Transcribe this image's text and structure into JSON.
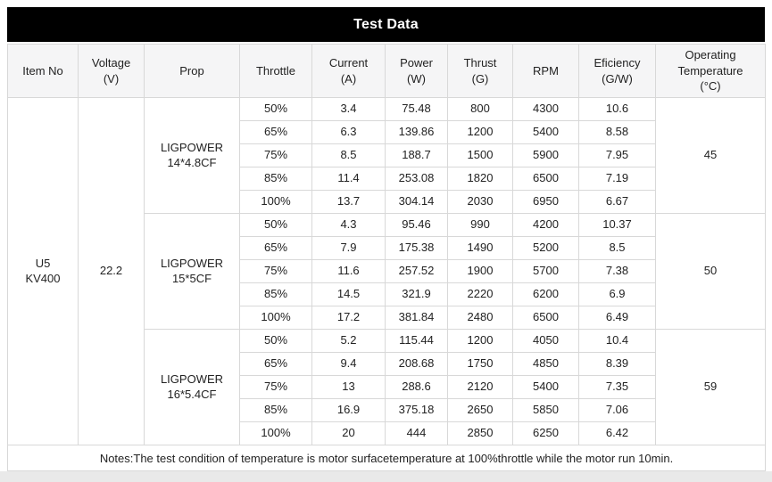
{
  "title": "Test Data",
  "table": {
    "columns": [
      "Item No",
      "Voltage\n(V)",
      "Prop",
      "Throttle",
      "Current\n(A)",
      "Power\n(W)",
      "Thrust\n(G)",
      "RPM",
      "Eficiency\n(G/W)",
      "Operating\nTemperature\n(°C)"
    ],
    "item_no": "U5\nKV400",
    "voltage": "22.2",
    "groups": [
      {
        "prop": "LIGPOWER\n14*4.8CF",
        "temperature": "45",
        "rows": [
          [
            "50%",
            "3.4",
            "75.48",
            "800",
            "4300",
            "10.6"
          ],
          [
            "65%",
            "6.3",
            "139.86",
            "1200",
            "5400",
            "8.58"
          ],
          [
            "75%",
            "8.5",
            "188.7",
            "1500",
            "5900",
            "7.95"
          ],
          [
            "85%",
            "11.4",
            "253.08",
            "1820",
            "6500",
            "7.19"
          ],
          [
            "100%",
            "13.7",
            "304.14",
            "2030",
            "6950",
            "6.67"
          ]
        ]
      },
      {
        "prop": "LIGPOWER\n15*5CF",
        "temperature": "50",
        "rows": [
          [
            "50%",
            "4.3",
            "95.46",
            "990",
            "4200",
            "10.37"
          ],
          [
            "65%",
            "7.9",
            "175.38",
            "1490",
            "5200",
            "8.5"
          ],
          [
            "75%",
            "11.6",
            "257.52",
            "1900",
            "5700",
            "7.38"
          ],
          [
            "85%",
            "14.5",
            "321.9",
            "2220",
            "6200",
            "6.9"
          ],
          [
            "100%",
            "17.2",
            "381.84",
            "2480",
            "6500",
            "6.49"
          ]
        ]
      },
      {
        "prop": "LIGPOWER\n16*5.4CF",
        "temperature": "59",
        "rows": [
          [
            "50%",
            "5.2",
            "115.44",
            "1200",
            "4050",
            "10.4"
          ],
          [
            "65%",
            "9.4",
            "208.68",
            "1750",
            "4850",
            "8.39"
          ],
          [
            "75%",
            "13",
            "288.6",
            "2120",
            "5400",
            "7.35"
          ],
          [
            "85%",
            "16.9",
            "375.18",
            "2650",
            "5850",
            "7.06"
          ],
          [
            "100%",
            "20",
            "444",
            "2850",
            "6250",
            "6.42"
          ]
        ]
      }
    ],
    "notes": "Notes:The test condition of temperature is motor surfacetemperature at 100%throttle while the motor run 10min."
  },
  "colors": {
    "title_bg": "#000000",
    "title_text": "#ffffff",
    "header_bg": "#f5f5f6",
    "border": "#d8d8d8",
    "text": "#222222",
    "page_bg": "#ffffff"
  },
  "chart_data": {
    "type": "table",
    "title": "Test Data",
    "columns": [
      "Item No",
      "Voltage (V)",
      "Prop",
      "Throttle",
      "Current (A)",
      "Power (W)",
      "Thrust (G)",
      "RPM",
      "Eficiency (G/W)",
      "Operating Temperature (°C)"
    ],
    "rows": [
      [
        "U5 KV400",
        22.2,
        "LIGPOWER 14*4.8CF",
        "50%",
        3.4,
        75.48,
        800,
        4300,
        10.6,
        45
      ],
      [
        "U5 KV400",
        22.2,
        "LIGPOWER 14*4.8CF",
        "65%",
        6.3,
        139.86,
        1200,
        5400,
        8.58,
        45
      ],
      [
        "U5 KV400",
        22.2,
        "LIGPOWER 14*4.8CF",
        "75%",
        8.5,
        188.7,
        1500,
        5900,
        7.95,
        45
      ],
      [
        "U5 KV400",
        22.2,
        "LIGPOWER 14*4.8CF",
        "85%",
        11.4,
        253.08,
        1820,
        6500,
        7.19,
        45
      ],
      [
        "U5 KV400",
        22.2,
        "LIGPOWER 14*4.8CF",
        "100%",
        13.7,
        304.14,
        2030,
        6950,
        6.67,
        45
      ],
      [
        "U5 KV400",
        22.2,
        "LIGPOWER 15*5CF",
        "50%",
        4.3,
        95.46,
        990,
        4200,
        10.37,
        50
      ],
      [
        "U5 KV400",
        22.2,
        "LIGPOWER 15*5CF",
        "65%",
        7.9,
        175.38,
        1490,
        5200,
        8.5,
        50
      ],
      [
        "U5 KV400",
        22.2,
        "LIGPOWER 15*5CF",
        "75%",
        11.6,
        257.52,
        1900,
        5700,
        7.38,
        50
      ],
      [
        "U5 KV400",
        22.2,
        "LIGPOWER 15*5CF",
        "85%",
        14.5,
        321.9,
        2220,
        6200,
        6.9,
        50
      ],
      [
        "U5 KV400",
        22.2,
        "LIGPOWER 15*5CF",
        "100%",
        17.2,
        381.84,
        2480,
        6500,
        6.49,
        50
      ],
      [
        "U5 KV400",
        22.2,
        "LIGPOWER 16*5.4CF",
        "50%",
        5.2,
        115.44,
        1200,
        4050,
        10.4,
        59
      ],
      [
        "U5 KV400",
        22.2,
        "LIGPOWER 16*5.4CF",
        "65%",
        9.4,
        208.68,
        1750,
        4850,
        8.39,
        59
      ],
      [
        "U5 KV400",
        22.2,
        "LIGPOWER 16*5.4CF",
        "75%",
        13,
        288.6,
        2120,
        5400,
        7.35,
        59
      ],
      [
        "U5 KV400",
        22.2,
        "LIGPOWER 16*5.4CF",
        "85%",
        16.9,
        375.18,
        2650,
        5850,
        7.06,
        59
      ],
      [
        "U5 KV400",
        22.2,
        "LIGPOWER 16*5.4CF",
        "100%",
        20,
        444,
        2850,
        6250,
        6.42,
        59
      ]
    ],
    "notes": "Notes:The test condition of temperature is motor surfacetemperature at 100%throttle while the motor run 10min."
  }
}
